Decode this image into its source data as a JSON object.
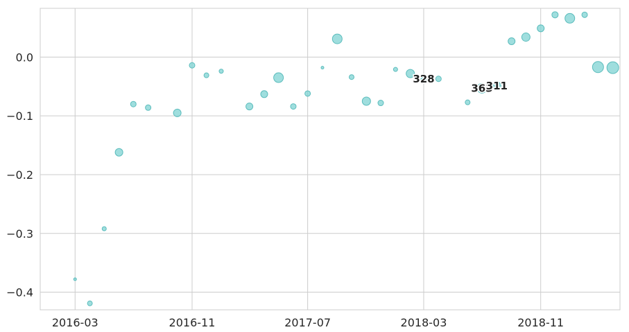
{
  "chart_data": {
    "type": "scatter",
    "title": "",
    "xlabel": "",
    "ylabel": "",
    "grid": true,
    "colors": {
      "marker_fill": "#7fd3d3",
      "marker_edge": "#5bbcbc",
      "grid": "#cccccc",
      "axes_edge": "#cccccc",
      "text": "#262626"
    },
    "xlim": [
      "2015-12-19",
      "2019-04-16"
    ],
    "ylim": [
      -0.43,
      0.083
    ],
    "x_ticks": [
      {
        "value": "2016-03-01",
        "label": "2016-03"
      },
      {
        "value": "2016-11-01",
        "label": "2016-11"
      },
      {
        "value": "2017-07-01",
        "label": "2017-07"
      },
      {
        "value": "2018-03-01",
        "label": "2018-03"
      },
      {
        "value": "2018-11-01",
        "label": "2018-11"
      }
    ],
    "y_ticks": [
      {
        "value": 0.0,
        "label": "0.0"
      },
      {
        "value": -0.1,
        "label": "−0.1"
      },
      {
        "value": -0.2,
        "label": "−0.2"
      },
      {
        "value": -0.3,
        "label": "−0.3"
      },
      {
        "value": -0.4,
        "label": "−0.4"
      }
    ],
    "points": [
      {
        "x": "2016-03-01",
        "y": -0.378,
        "r": 2
      },
      {
        "x": "2016-04-01",
        "y": -0.419,
        "r": 3.5
      },
      {
        "x": "2016-05-01",
        "y": -0.292,
        "r": 3
      },
      {
        "x": "2016-06-01",
        "y": -0.162,
        "r": 5.5
      },
      {
        "x": "2016-07-01",
        "y": -0.08,
        "r": 4
      },
      {
        "x": "2016-08-01",
        "y": -0.086,
        "r": 4
      },
      {
        "x": "2016-10-01",
        "y": -0.095,
        "r": 5.5
      },
      {
        "x": "2016-11-01",
        "y": -0.014,
        "r": 4
      },
      {
        "x": "2016-12-01",
        "y": -0.031,
        "r": 3.5
      },
      {
        "x": "2017-01-01",
        "y": -0.024,
        "r": 3
      },
      {
        "x": "2017-03-01",
        "y": -0.084,
        "r": 5
      },
      {
        "x": "2017-04-01",
        "y": -0.063,
        "r": 5
      },
      {
        "x": "2017-05-01",
        "y": -0.035,
        "r": 7
      },
      {
        "x": "2017-06-01",
        "y": -0.084,
        "r": 4
      },
      {
        "x": "2017-07-01",
        "y": -0.062,
        "r": 4
      },
      {
        "x": "2017-08-01",
        "y": -0.018,
        "r": 2
      },
      {
        "x": "2017-09-01",
        "y": 0.031,
        "r": 7
      },
      {
        "x": "2017-10-01",
        "y": -0.034,
        "r": 3.5
      },
      {
        "x": "2017-11-01",
        "y": -0.075,
        "r": 6
      },
      {
        "x": "2017-12-01",
        "y": -0.078,
        "r": 4
      },
      {
        "x": "2018-01-01",
        "y": -0.021,
        "r": 3
      },
      {
        "x": "2018-02-01",
        "y": -0.028,
        "r": 6
      },
      {
        "x": "2018-03-01",
        "y": -0.038,
        "r": 4
      },
      {
        "x": "2018-04-01",
        "y": -0.037,
        "r": 4
      },
      {
        "x": "2018-06-01",
        "y": -0.077,
        "r": 3.5
      },
      {
        "x": "2018-07-01",
        "y": -0.053,
        "r": 7
      },
      {
        "x": "2018-08-01",
        "y": -0.049,
        "r": 6
      },
      {
        "x": "2018-09-01",
        "y": 0.027,
        "r": 5
      },
      {
        "x": "2018-10-01",
        "y": 0.034,
        "r": 6
      },
      {
        "x": "2018-11-01",
        "y": 0.049,
        "r": 5
      },
      {
        "x": "2018-12-01",
        "y": 0.072,
        "r": 4.5
      },
      {
        "x": "2019-01-01",
        "y": 0.066,
        "r": 7
      },
      {
        "x": "2019-02-01",
        "y": 0.072,
        "r": 4
      },
      {
        "x": "2019-03-01",
        "y": -0.017,
        "r": 8
      },
      {
        "x": "2019-04-01",
        "y": -0.018,
        "r": 8.5
      }
    ],
    "annotations": [
      {
        "text": "328",
        "x": "2018-03-01",
        "y": -0.037
      },
      {
        "text": "363",
        "x": "2018-07-01",
        "y": -0.053
      },
      {
        "text": "311",
        "x": "2018-08-01",
        "y": -0.049
      }
    ]
  }
}
